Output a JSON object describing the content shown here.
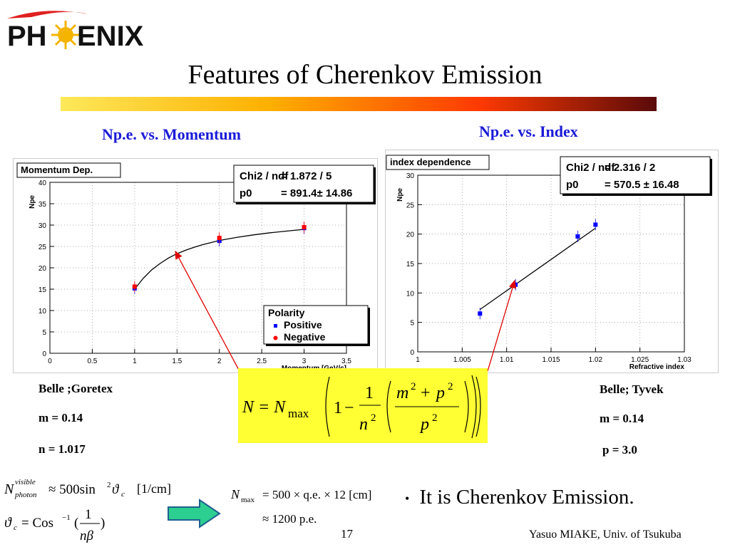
{
  "logo": {
    "text_left": "PH",
    "text_right": "ENIX"
  },
  "slide_title": "Features of Cherenkov Emission",
  "headers": {
    "left": "Np.e. vs. Momentum",
    "right": "Np.e. vs. Index"
  },
  "left_notes": {
    "detector": "Belle ;Goretex",
    "mass": "m = 0.14",
    "index": "n = 1.017"
  },
  "right_notes": {
    "detector": "Belle; Tyvek",
    "mass": "m = 0.14",
    "momentum": "p = 3.0"
  },
  "formula": {
    "lhs": "N = N",
    "sub": "max",
    "one": "1",
    "n": "n",
    "m": "m",
    "p": "p",
    "two": "2",
    "plus": "+",
    "minus": "−"
  },
  "eq1": {
    "N": "N",
    "sup": "visible",
    "sub": "photon",
    "rhs": "≈ 500sin",
    "theta": "ϑ",
    "c": "c",
    "unit": "[1/cm]",
    "two": "2"
  },
  "eq2": {
    "theta": "ϑ",
    "c": "c",
    "rhs": "= Cos",
    "inv": "−1",
    "one": "1",
    "nbeta": "nβ"
  },
  "eq3": {
    "N": "N",
    "sub": "max",
    "rhs": "= 500 × q.e. × 12 [cm]",
    "approx": "≈ 1200 p.e."
  },
  "bullet_text": "It is Cherenkov Emission.",
  "bullet_symbol": "•",
  "page_number": "17",
  "footer": "Yasuo MIAKE, Univ. of Tsukuba",
  "colors": {
    "header_blue": "#1a1ad8",
    "formula_bg": "#ffff33",
    "arrow_red": "#e00000",
    "arrow_green": "#2ccf8f",
    "point_blue": "#0000ff",
    "point_red": "#ff0000"
  },
  "chart_data": [
    {
      "type": "scatter",
      "title": "Momentum Dep.",
      "xlabel": "Momentum [GeV/c]",
      "ylabel": "Npe",
      "xlim": [
        0,
        3.5
      ],
      "ylim": [
        0,
        40
      ],
      "xticks": [
        "0",
        "0.5",
        "1",
        "1.5",
        "2",
        "2.5",
        "3",
        "3.5"
      ],
      "yticks": [
        "0",
        "5",
        "10",
        "15",
        "20",
        "25",
        "30",
        "35",
        "40"
      ],
      "stats": [
        {
          "label": "Chi2 / ndf",
          "value": "= 1.872 / 5"
        },
        {
          "label": "p0",
          "value": "= 891.4± 14.86"
        }
      ],
      "legend_title": "Polarity",
      "series": [
        {
          "name": "Positive",
          "color": "#0000ff",
          "x": [
            1,
            2,
            3
          ],
          "y": [
            15.2,
            26.3,
            29.3
          ]
        },
        {
          "name": "Negative",
          "color": "#ff0000",
          "x": [
            1,
            2,
            3
          ],
          "y": [
            15.6,
            27.0,
            29.5
          ]
        }
      ],
      "fit_x": [
        1,
        1.1,
        1.2,
        1.3,
        1.4,
        1.5,
        1.6,
        1.7,
        1.8,
        2.0,
        2.2,
        2.4,
        2.6,
        2.8,
        3.0
      ],
      "fit_y": [
        15.0,
        17.5,
        19.5,
        21.0,
        22.3,
        23.3,
        24.1,
        24.8,
        25.4,
        26.4,
        27.1,
        27.7,
        28.2,
        28.6,
        29.0
      ]
    },
    {
      "type": "scatter",
      "title": "index dependence",
      "xlabel": "Refractive index",
      "ylabel": "Npe",
      "xlim": [
        1,
        1.03
      ],
      "ylim": [
        0,
        30
      ],
      "xticks": [
        "1",
        "1.005",
        "1.01",
        "1.015",
        "1.02",
        "1.025",
        "1.03"
      ],
      "yticks": [
        "0",
        "5",
        "10",
        "15",
        "20",
        "25",
        "30"
      ],
      "stats": [
        {
          "label": "Chi2 / ndf",
          "value": "= 2.316 / 2"
        },
        {
          "label": "p0",
          "value": "= 570.5 ± 16.48"
        }
      ],
      "series": [
        {
          "color": "#0000ff",
          "x": [
            1.007,
            1.011,
            1.018,
            1.02
          ],
          "y": [
            6.5,
            11.4,
            19.6,
            21.6
          ]
        }
      ],
      "fit_x": [
        1.007,
        1.02
      ],
      "fit_y": [
        7.2,
        21.0
      ]
    }
  ]
}
